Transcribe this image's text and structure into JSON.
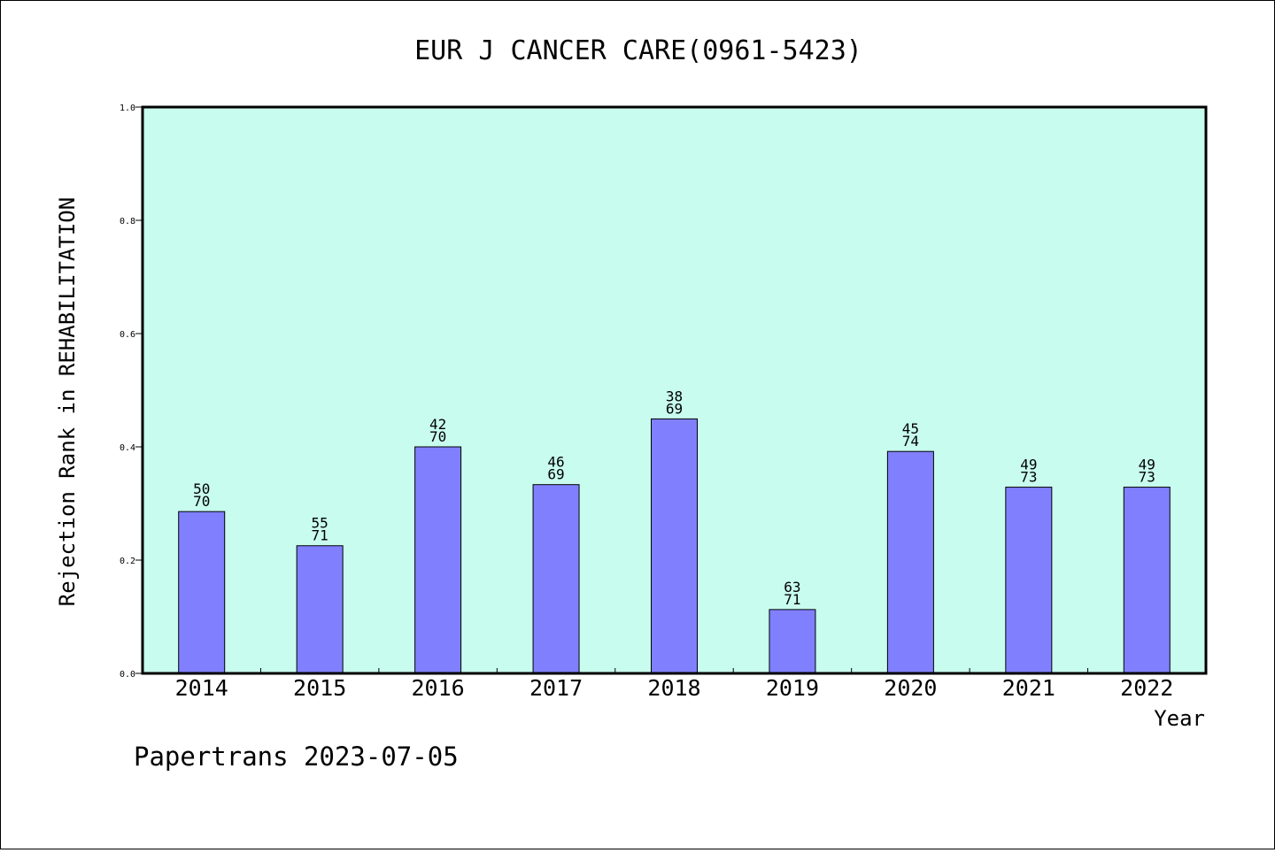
{
  "colors": {
    "plot_background": "#c8fcee",
    "bar_fill": "#8080ff",
    "bar_stroke": "#000000",
    "frame": "#000000"
  },
  "chart_data": {
    "type": "bar",
    "title": "EUR J CANCER CARE(0961-5423)",
    "xlabel": "Year",
    "ylabel": "Rejection Rank in REHABILITATION",
    "ylim": [
      0,
      1.0
    ],
    "yticks": [
      "0.0",
      "0.2",
      "0.4",
      "0.6",
      "0.8",
      "1.0"
    ],
    "grid": false,
    "categories": [
      "2014",
      "2015",
      "2016",
      "2017",
      "2018",
      "2019",
      "2020",
      "2021",
      "2022"
    ],
    "values": [
      0.2857,
      0.2254,
      0.4,
      0.3333,
      0.4493,
      0.1127,
      0.3919,
      0.3288,
      0.3288
    ],
    "labels_top": [
      "50",
      "55",
      "42",
      "46",
      "38",
      "63",
      "45",
      "49",
      "49"
    ],
    "labels_bottom": [
      "70",
      "71",
      "70",
      "69",
      "69",
      "71",
      "74",
      "73",
      "73"
    ]
  },
  "footer": {
    "text": "Papertrans 2023-07-05"
  }
}
